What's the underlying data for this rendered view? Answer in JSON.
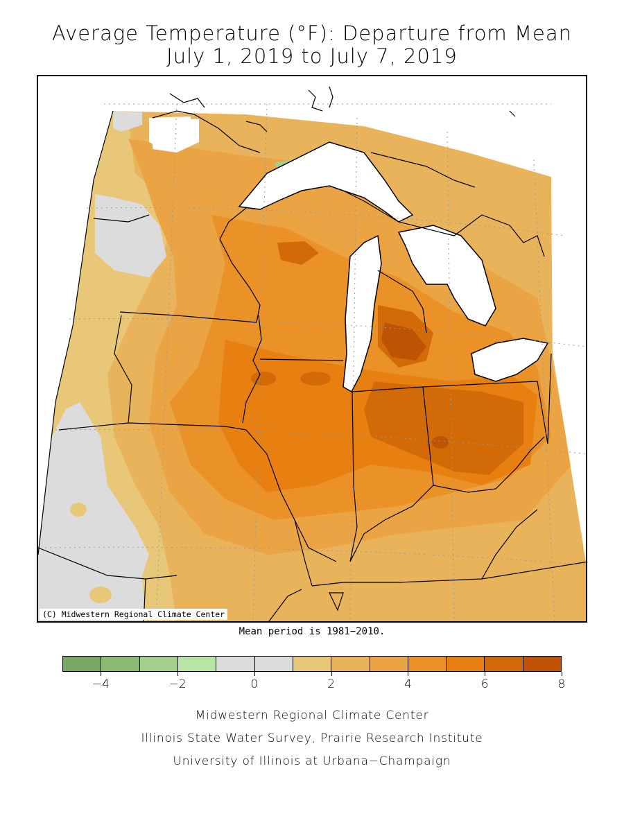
{
  "title_line1": "Average Temperature (°F): Departure from Mean",
  "title_line2": "July 1, 2019 to July 7, 2019",
  "copyright": "(C) Midwestern Regional Climate Center",
  "mean_period": "Mean period is 1981−2010.",
  "legend": {
    "min": -5,
    "max": 8,
    "colors": [
      "#77a864",
      "#8bbc75",
      "#a3cf8e",
      "#b6e5a6",
      "#dcdcdc",
      "#dcdcdc",
      "#e8c878",
      "#e9b35c",
      "#eba443",
      "#ea9128",
      "#e77f11",
      "#d26a07",
      "#be5304"
    ],
    "tick_values": [
      -4,
      -2,
      0,
      2,
      4,
      6,
      8
    ],
    "tick_labels": [
      "−4",
      "−2",
      "0",
      "2",
      "4",
      "6",
      "8"
    ]
  },
  "credits": {
    "line1": "Midwestern Regional Climate Center",
    "line2": "Illinois State Water Survey, Prairie Research Institute",
    "line3": "University of Illinois at Urbana−Champaign"
  }
}
